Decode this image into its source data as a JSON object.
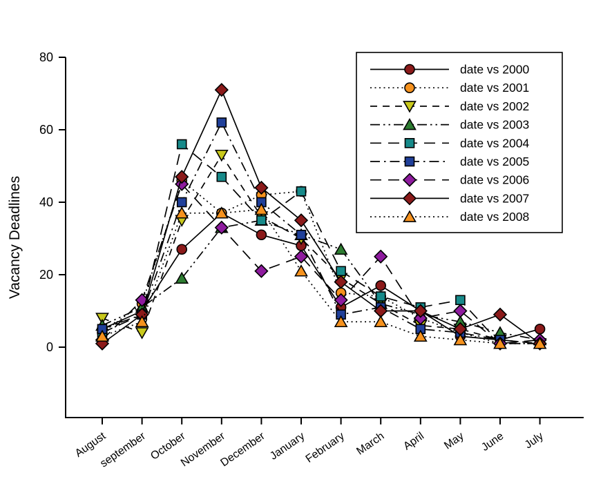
{
  "chart_data": {
    "type": "line",
    "title": "",
    "xlabel": "",
    "ylabel": "Vacancy Deadlines",
    "ylim": [
      0,
      80
    ],
    "y_ticks": [
      0,
      20,
      40,
      60,
      80
    ],
    "grid": false,
    "legend_position": "upper-right",
    "categories": [
      "August",
      "september",
      "October",
      "November",
      "December",
      "January",
      "February",
      "March",
      "April",
      "May",
      "June",
      "July"
    ],
    "line_color": "#000000",
    "series": [
      {
        "name": "2000",
        "label": "date vs 2000",
        "marker": "circle",
        "marker_color": "#8B1A1A",
        "linestyle": "solid",
        "values": [
          5,
          10,
          27,
          37,
          31,
          28,
          11,
          17,
          10,
          3,
          2,
          5
        ]
      },
      {
        "name": "2001",
        "label": "date vs 2001",
        "marker": "circle",
        "marker_color": "#F6921E",
        "linestyle": "dot",
        "values": [
          4,
          12,
          46,
          37,
          42,
          43,
          15,
          14,
          8,
          4,
          1,
          1
        ]
      },
      {
        "name": "2002",
        "label": "date vs 2002",
        "marker": "triangle-down",
        "marker_color": "#C9C91C",
        "linestyle": "dash",
        "values": [
          8,
          4,
          35,
          53,
          36,
          30,
          19,
          12,
          6,
          5,
          2,
          1
        ]
      },
      {
        "name": "2003",
        "label": "date vs 2003",
        "marker": "triangle-up",
        "marker_color": "#2E7D32",
        "linestyle": "dash-dot-dot",
        "values": [
          6,
          11,
          19,
          33,
          35,
          31,
          27,
          12,
          9,
          7,
          4,
          2
        ]
      },
      {
        "name": "2004",
        "label": "date vs 2004",
        "marker": "square",
        "marker_color": "#178A8A",
        "linestyle": "long-dash",
        "values": [
          4,
          9,
          56,
          47,
          35,
          43,
          21,
          14,
          11,
          13,
          1,
          1
        ]
      },
      {
        "name": "2005",
        "label": "date vs 2005",
        "marker": "square",
        "marker_color": "#20409A",
        "linestyle": "dash-dot",
        "values": [
          5,
          9,
          40,
          62,
          40,
          31,
          9,
          11,
          5,
          4,
          2,
          1
        ]
      },
      {
        "name": "2006",
        "label": "date vs 2006",
        "marker": "diamond",
        "marker_color": "#8E1B9E",
        "linestyle": "long-dash",
        "values": [
          2,
          13,
          45,
          33,
          21,
          25,
          13,
          25,
          8,
          10,
          1,
          2
        ]
      },
      {
        "name": "2007",
        "label": "date vs 2007",
        "marker": "diamond",
        "marker_color": "#8B1A1A",
        "linestyle": "solid",
        "values": [
          1,
          9,
          47,
          71,
          44,
          35,
          18,
          10,
          10,
          5,
          9,
          1
        ]
      },
      {
        "name": "2008",
        "label": "date vs 2008",
        "marker": "triangle-up",
        "marker_color": "#F6921E",
        "linestyle": "dot",
        "values": [
          3,
          7,
          37,
          37,
          38,
          21,
          7,
          7,
          3,
          2,
          1,
          1
        ]
      }
    ]
  }
}
